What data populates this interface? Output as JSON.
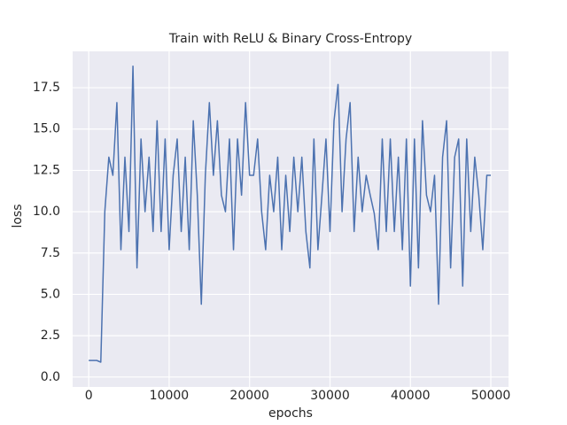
{
  "chart_data": {
    "type": "line",
    "title": "Train with ReLU & Binary Cross-Entropy",
    "xlabel": "epochs",
    "ylabel": "loss",
    "x": [
      0,
      500,
      1000,
      1500,
      2000,
      2500,
      3000,
      3500,
      4000,
      4500,
      5000,
      5500,
      6000,
      6500,
      7000,
      7500,
      8000,
      8500,
      9000,
      9500,
      10000,
      10500,
      11000,
      11500,
      12000,
      12500,
      13000,
      13500,
      14000,
      14500,
      15000,
      15500,
      16000,
      16500,
      17000,
      17500,
      18000,
      18500,
      19000,
      19500,
      20000,
      20500,
      21000,
      21500,
      22000,
      22500,
      23000,
      23500,
      24000,
      24500,
      25000,
      25500,
      26000,
      26500,
      27000,
      27500,
      28000,
      28500,
      29000,
      29500,
      30000,
      30500,
      31000,
      31500,
      32000,
      32500,
      33000,
      33500,
      34000,
      34500,
      35000,
      35500,
      36000,
      36500,
      37000,
      37500,
      38000,
      38500,
      39000,
      39500,
      40000,
      40500,
      41000,
      41500,
      42000,
      42500,
      43000,
      43500,
      44000,
      44500,
      45000,
      45500,
      46000,
      46500,
      47000,
      47500,
      48000,
      48500,
      49000,
      49500,
      50000
    ],
    "series": [
      {
        "name": "loss",
        "color": "#4c72b0",
        "values": [
          1.0,
          1.0,
          1.0,
          0.9,
          10.0,
          13.3,
          12.2,
          16.6,
          7.7,
          13.3,
          8.8,
          18.8,
          6.6,
          14.4,
          10.0,
          13.3,
          8.8,
          15.5,
          8.8,
          14.4,
          7.7,
          12.2,
          14.4,
          8.8,
          13.3,
          7.7,
          15.5,
          11.0,
          4.4,
          12.2,
          16.6,
          12.2,
          15.5,
          11.0,
          10.0,
          14.4,
          7.7,
          14.4,
          11.0,
          16.6,
          12.2,
          12.2,
          14.4,
          10.0,
          7.7,
          12.2,
          10.0,
          13.3,
          7.7,
          12.2,
          8.8,
          13.3,
          10.0,
          13.3,
          8.8,
          6.6,
          14.4,
          7.7,
          11.0,
          14.4,
          8.8,
          15.5,
          17.7,
          10.0,
          14.4,
          16.6,
          8.8,
          13.3,
          10.0,
          12.2,
          11.0,
          9.9,
          7.7,
          14.4,
          8.8,
          14.4,
          8.8,
          13.3,
          7.7,
          14.4,
          5.5,
          14.4,
          6.6,
          15.5,
          11.0,
          10.0,
          12.2,
          4.4,
          13.3,
          15.5,
          6.6,
          13.3,
          14.4,
          5.5,
          14.4,
          8.8,
          13.3,
          11.0,
          7.7,
          12.2,
          12.2
        ]
      }
    ],
    "xlim": [
      -2000,
      52200
    ],
    "ylim": [
      -0.6,
      19.7
    ],
    "xticks": [
      0,
      10000,
      20000,
      30000,
      40000,
      50000
    ],
    "yticks": [
      {
        "value": 0,
        "label": "0.0"
      },
      2.5,
      {
        "value": 5,
        "label": "5.0"
      },
      7.5,
      {
        "value": 10,
        "label": "10.0"
      },
      12.5,
      {
        "value": 15,
        "label": "15.0"
      },
      17.5
    ],
    "grid": true,
    "background": "#eaeaf2"
  }
}
